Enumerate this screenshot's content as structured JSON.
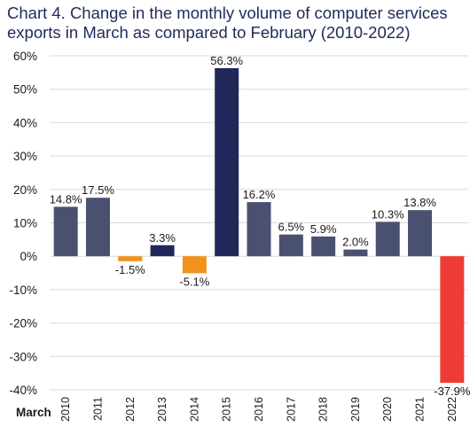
{
  "title": {
    "line1": "Chart 4. Change in the monthly volume of computer services",
    "line2": "exports in March as compared to February (2010-2022)"
  },
  "chart_data": {
    "type": "bar",
    "title": "Chart 4. Change in the monthly volume of computer services exports in March as compared to February (2010-2022)",
    "xlabel": "March",
    "ylabel": "",
    "ylim": [
      -40,
      60
    ],
    "y_ticks": [
      "60%",
      "50%",
      "40%",
      "30%",
      "20%",
      "10%",
      "0%",
      "-10%",
      "-20%",
      "-30%",
      "-40%"
    ],
    "y_tick_values": [
      60,
      50,
      40,
      30,
      20,
      10,
      0,
      -10,
      -20,
      -30,
      -40
    ],
    "grid": true,
    "legend": "none",
    "categories": [
      "2010",
      "2011",
      "2012",
      "2013",
      "2014",
      "2015",
      "2016",
      "2017",
      "2018",
      "2019",
      "2020",
      "2021",
      "2022"
    ],
    "values": [
      14.8,
      17.5,
      -1.5,
      3.3,
      -5.1,
      56.3,
      16.2,
      6.5,
      5.9,
      2.0,
      10.3,
      13.8,
      -37.9
    ],
    "data_labels": [
      "14.8%",
      "17.5%",
      "-1.5%",
      "3.3%",
      "-5.1%",
      "56.3%",
      "16.2%",
      "6.5%",
      "5.9%",
      "2.0%",
      "10.3%",
      "13.8%",
      "-37.9%"
    ],
    "bar_colors": [
      "#4a5170",
      "#4a5170",
      "#f0921e",
      "#1f2859",
      "#f0921e",
      "#1f2859",
      "#4a5170",
      "#4a5170",
      "#4a5170",
      "#4a5170",
      "#4a5170",
      "#4a5170",
      "#ef3b36"
    ],
    "colors": {
      "default_bar": "#4a5170",
      "highlight_bar": "#1f2859",
      "negative_bar": "#f0921e",
      "latest_negative_bar": "#ef3b36",
      "grid": "#d9d9d9",
      "title": "#1f2a5a"
    }
  }
}
